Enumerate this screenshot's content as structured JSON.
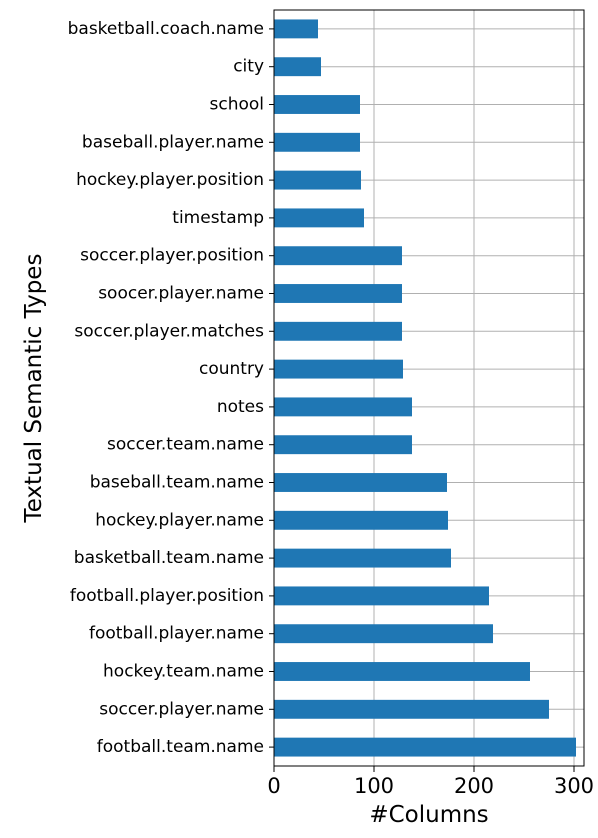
{
  "chart_data": {
    "type": "bar",
    "orientation": "horizontal",
    "categories": [
      "football.team.name",
      "soccer.player.name",
      "hockey.team.name",
      "football.player.name",
      "football.player.position",
      "basketball.team.name",
      "hockey.player.name",
      "baseball.team.name",
      "soccer.team.name",
      "notes",
      "country",
      "soccer.player.matches",
      "soocer.player.name",
      "soccer.player.position",
      "timestamp",
      "hockey.player.position",
      "baseball.player.name",
      "school",
      "city",
      "basketball.coach.name"
    ],
    "values": [
      302,
      275,
      256,
      219,
      215,
      177,
      174,
      173,
      138,
      138,
      129,
      128,
      128,
      128,
      90,
      87,
      86,
      86,
      47,
      44
    ],
    "xlabel": "#Columns",
    "ylabel": "Textual Semantic Types",
    "xlim": [
      0,
      310
    ],
    "xticks": [
      0,
      100,
      200,
      300
    ],
    "grid": true,
    "bar_color": "#1f77b4",
    "grid_color": "#b0b0b0"
  }
}
